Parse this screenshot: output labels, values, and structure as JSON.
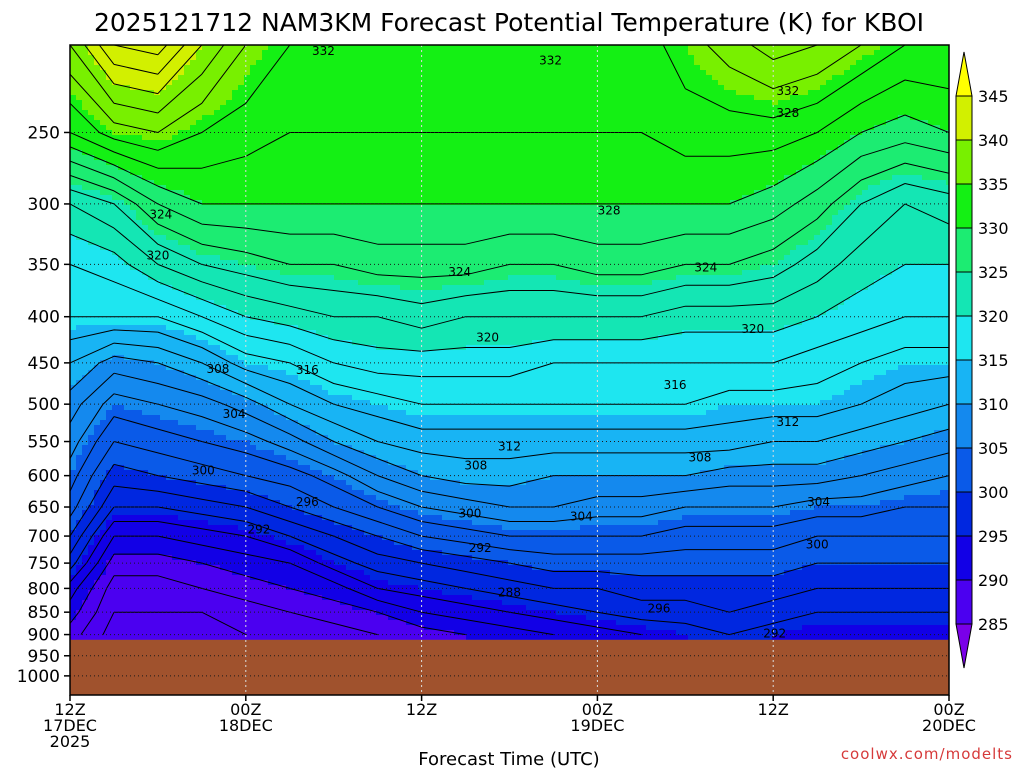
{
  "chart_data": {
    "type": "heatmap",
    "title": "2025121712 NAM3KM Forecast Potential Temperature (K) for KBOI",
    "xlabel": "Forecast Time (UTC)",
    "ylabel": "",
    "credit": "coolwx.com/modelts",
    "y_axis": {
      "scale": "log",
      "inverted": true,
      "range": [
        200,
        1050
      ],
      "ticks": [
        250,
        300,
        350,
        400,
        450,
        500,
        550,
        600,
        650,
        700,
        750,
        800,
        850,
        900,
        950,
        1000
      ],
      "tick_labels": [
        "250",
        "300",
        "350",
        "400",
        "450",
        "500",
        "550",
        "600",
        "650",
        "700",
        "750",
        "800",
        "850",
        "900",
        "950",
        "1000"
      ]
    },
    "x_axis": {
      "range_hours": [
        0,
        60
      ],
      "ticks": [
        {
          "hour": 0,
          "lines": [
            "12Z",
            "17DEC",
            "2025"
          ]
        },
        {
          "hour": 12,
          "lines": [
            "00Z",
            "18DEC"
          ]
        },
        {
          "hour": 24,
          "lines": [
            "12Z"
          ]
        },
        {
          "hour": 36,
          "lines": [
            "00Z",
            "19DEC"
          ]
        },
        {
          "hour": 48,
          "lines": [
            "12Z"
          ]
        },
        {
          "hour": 60,
          "lines": [
            "00Z",
            "20DEC"
          ]
        }
      ]
    },
    "grid": true,
    "surface_pressure": 912,
    "surface_color": "#a0522d",
    "levels_hpa": [
      200,
      250,
      300,
      350,
      400,
      450,
      500,
      550,
      600,
      650,
      700,
      750,
      800,
      850,
      900
    ],
    "series": [
      {
        "hour": 0,
        "theta": [
          338,
          332,
          322,
          318,
          316,
          312,
          309,
          307,
          305,
          303,
          300,
          297,
          293,
          291,
          289
        ]
      },
      {
        "hour": 3,
        "theta": [
          344,
          335,
          324,
          319,
          316,
          309,
          305,
          302,
          299,
          296,
          292,
          289,
          287,
          286,
          285
        ]
      },
      {
        "hour": 6,
        "theta": [
          345,
          336,
          328,
          322,
          316,
          310,
          306,
          303,
          300,
          296,
          292,
          289,
          287,
          286,
          285
        ]
      },
      {
        "hour": 9,
        "theta": [
          340,
          334,
          330,
          324,
          318,
          312,
          307,
          304,
          301,
          297,
          293,
          290,
          288,
          286,
          285
        ]
      },
      {
        "hour": 12,
        "theta": [
          336,
          333,
          330,
          325,
          320,
          315,
          309,
          305,
          302,
          298,
          294,
          291,
          289,
          287,
          286
        ]
      },
      {
        "hour": 15,
        "theta": [
          334,
          332,
          330,
          326,
          321,
          316,
          312,
          307,
          303,
          300,
          296,
          292,
          290,
          288,
          286
        ]
      },
      {
        "hour": 18,
        "theta": [
          333,
          332,
          330,
          326,
          322,
          318,
          314,
          310,
          305,
          302,
          298,
          295,
          291,
          289,
          287
        ]
      },
      {
        "hour": 21,
        "theta": [
          333,
          332,
          330,
          327,
          322,
          319,
          315,
          312,
          308,
          304,
          300,
          297,
          294,
          290,
          288
        ]
      },
      {
        "hour": 24,
        "theta": [
          333,
          332,
          330,
          327,
          323,
          319,
          316,
          313,
          310,
          306,
          302,
          298,
          295,
          292,
          289
        ]
      },
      {
        "hour": 27,
        "theta": [
          333,
          332,
          330,
          327,
          322,
          319,
          316,
          313,
          311,
          307,
          303,
          299,
          296,
          293,
          290
        ]
      },
      {
        "hour": 30,
        "theta": [
          333,
          332,
          330,
          326,
          322,
          319,
          316,
          313,
          311,
          308,
          304,
          300,
          297,
          294,
          291
        ]
      },
      {
        "hour": 33,
        "theta": [
          333,
          332,
          330,
          326,
          322,
          318,
          316,
          313,
          310,
          308,
          304,
          301,
          298,
          295,
          292
        ]
      },
      {
        "hour": 36,
        "theta": [
          333,
          332,
          330,
          327,
          322,
          318,
          316,
          313,
          310,
          307,
          304,
          301,
          298,
          296,
          293
        ]
      },
      {
        "hour": 39,
        "theta": [
          333,
          332,
          330,
          327,
          322,
          318,
          316,
          313,
          310,
          307,
          304,
          301,
          299,
          297,
          294
        ]
      },
      {
        "hour": 42,
        "theta": [
          335,
          333,
          330,
          326,
          321,
          318,
          316,
          313,
          310,
          306,
          303,
          301,
          299,
          297,
          295
        ]
      },
      {
        "hour": 45,
        "theta": [
          337,
          333,
          330,
          326,
          321,
          318,
          315,
          313,
          309,
          306,
          303,
          301,
          299,
          298,
          296
        ]
      },
      {
        "hour": 48,
        "theta": [
          339,
          333,
          329,
          325,
          321,
          318,
          315,
          312,
          309,
          306,
          303,
          301,
          299,
          297,
          295
        ]
      },
      {
        "hour": 51,
        "theta": [
          338,
          332,
          327,
          323,
          320,
          317,
          315,
          312,
          309,
          305,
          302,
          300,
          298,
          296,
          294
        ]
      },
      {
        "hour": 54,
        "theta": [
          336,
          330,
          324,
          321,
          319,
          316,
          314,
          311,
          308,
          305,
          302,
          300,
          298,
          296,
          294
        ]
      },
      {
        "hour": 57,
        "theta": [
          334,
          329,
          322,
          320,
          318,
          315,
          313,
          310,
          307,
          304,
          302,
          300,
          298,
          296,
          294
        ]
      },
      {
        "hour": 60,
        "theta": [
          334,
          330,
          323,
          320,
          318,
          315,
          312,
          309,
          306,
          304,
          302,
          300,
          298,
          296,
          294
        ]
      }
    ],
    "fill_levels": [
      285,
      290,
      295,
      300,
      305,
      310,
      315,
      320,
      325,
      330,
      335,
      340,
      345
    ],
    "fill_colors": [
      "#7a00e8",
      "#4b00f0",
      "#1200e6",
      "#0027e0",
      "#0a5ae8",
      "#1489ee",
      "#18b4f4",
      "#1ee6f0",
      "#14e6b4",
      "#1cec72",
      "#14f014",
      "#78f000",
      "#d2f000",
      "#ffff00"
    ],
    "contour_interval": 2,
    "contour_labels": [
      {
        "text": "332",
        "hour": 17.3,
        "p": 203
      },
      {
        "text": "332",
        "hour": 32.8,
        "p": 208
      },
      {
        "text": "332",
        "hour": 49.0,
        "p": 225
      },
      {
        "text": "328",
        "hour": 49.0,
        "p": 238
      },
      {
        "text": "328",
        "hour": 36.8,
        "p": 305
      },
      {
        "text": "324",
        "hour": 6.2,
        "p": 308
      },
      {
        "text": "324",
        "hour": 26.6,
        "p": 357
      },
      {
        "text": "324",
        "hour": 43.4,
        "p": 353
      },
      {
        "text": "320",
        "hour": 6.0,
        "p": 342
      },
      {
        "text": "320",
        "hour": 28.5,
        "p": 422
      },
      {
        "text": "320",
        "hour": 46.6,
        "p": 413
      },
      {
        "text": "316",
        "hour": 16.2,
        "p": 458
      },
      {
        "text": "316",
        "hour": 41.3,
        "p": 476
      },
      {
        "text": "312",
        "hour": 30.0,
        "p": 557
      },
      {
        "text": "312",
        "hour": 49.0,
        "p": 523
      },
      {
        "text": "308",
        "hour": 10.1,
        "p": 457
      },
      {
        "text": "308",
        "hour": 27.7,
        "p": 585
      },
      {
        "text": "308",
        "hour": 43.0,
        "p": 573
      },
      {
        "text": "304",
        "hour": 11.2,
        "p": 513
      },
      {
        "text": "304",
        "hour": 34.9,
        "p": 666
      },
      {
        "text": "304",
        "hour": 51.1,
        "p": 642
      },
      {
        "text": "300",
        "hour": 9.1,
        "p": 592
      },
      {
        "text": "300",
        "hour": 27.3,
        "p": 661
      },
      {
        "text": "300",
        "hour": 51.0,
        "p": 715
      },
      {
        "text": "296",
        "hour": 16.2,
        "p": 642
      },
      {
        "text": "296",
        "hour": 40.2,
        "p": 842
      },
      {
        "text": "292",
        "hour": 12.9,
        "p": 688
      },
      {
        "text": "292",
        "hour": 28.0,
        "p": 722
      },
      {
        "text": "292",
        "hour": 48.1,
        "p": 898
      },
      {
        "text": "288",
        "hour": 30.0,
        "p": 808
      }
    ]
  }
}
